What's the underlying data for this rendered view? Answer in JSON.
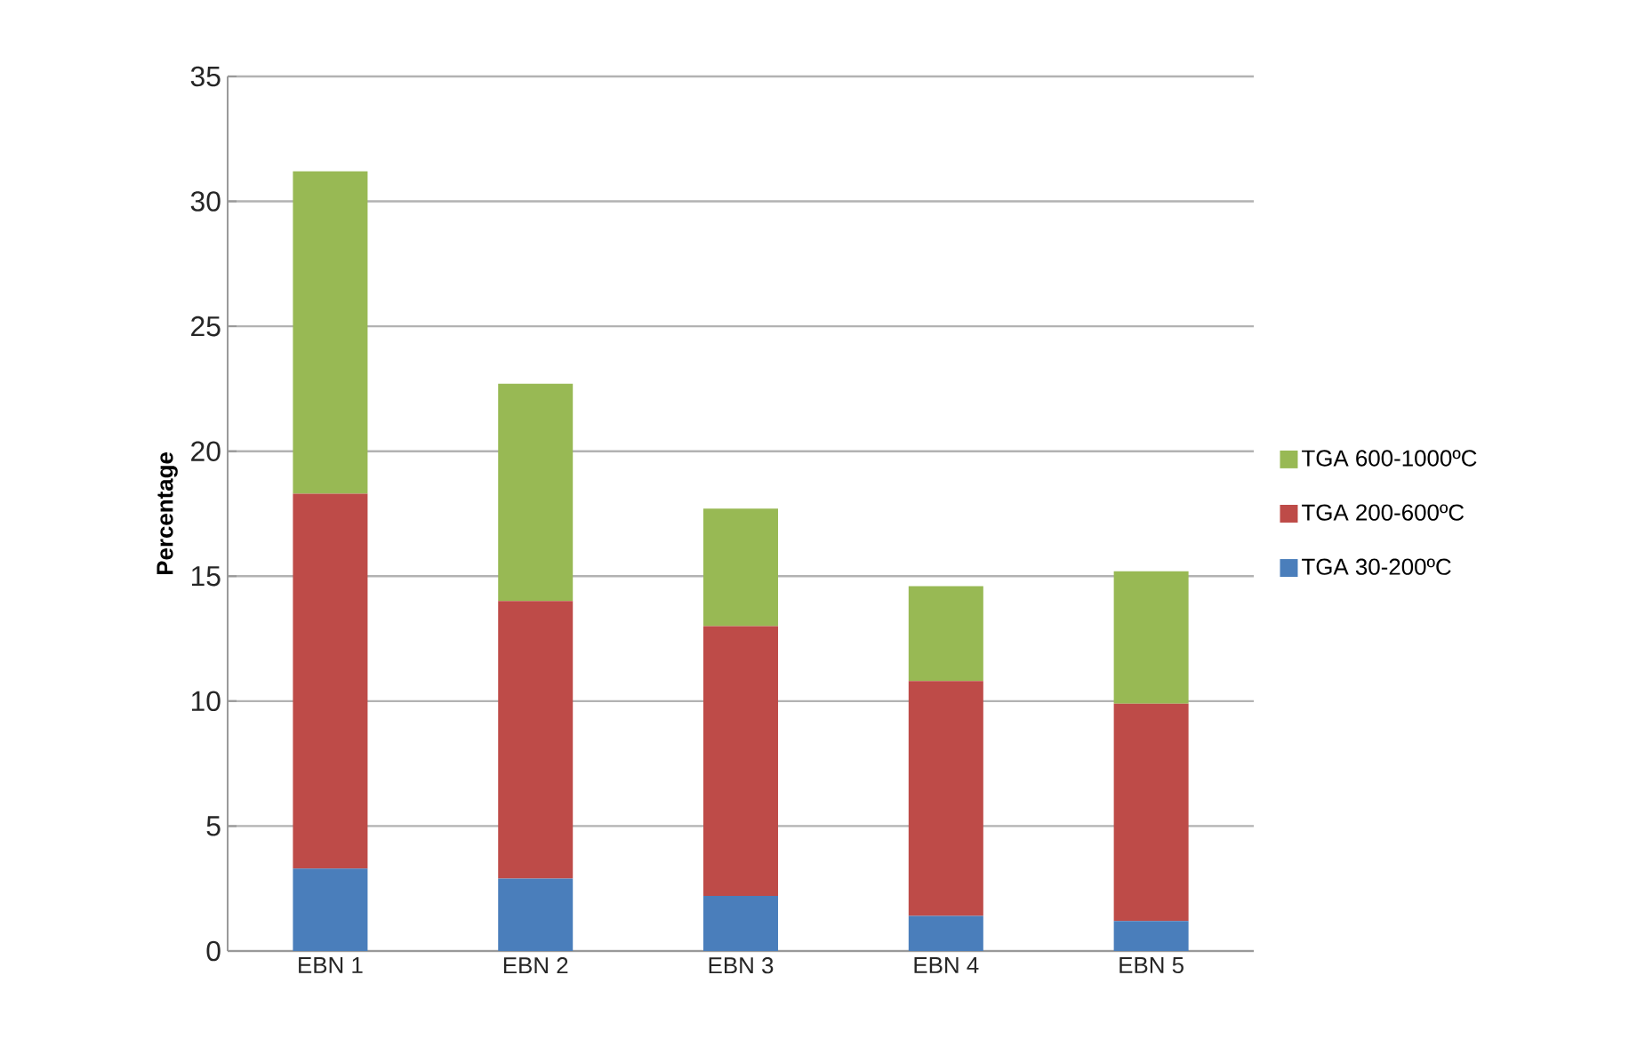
{
  "chart_data": {
    "type": "bar",
    "stacked": true,
    "ylabel": "Percentage",
    "categories": [
      "EBN 1",
      "EBN 2",
      "EBN 3",
      "EBN 4",
      "EBN 5"
    ],
    "series": [
      {
        "name": "TGA 30-200ºC",
        "color": "#4a7ebb",
        "values": [
          3.3,
          2.9,
          2.2,
          1.4,
          1.2
        ]
      },
      {
        "name": "TGA 200-600ºC",
        "color": "#be4b48",
        "values": [
          15.0,
          11.1,
          10.8,
          9.4,
          8.7
        ]
      },
      {
        "name": "TGA 600-1000ºC",
        "color": "#98b954",
        "values": [
          12.9,
          8.7,
          4.7,
          3.8,
          5.3
        ]
      }
    ],
    "ylim": [
      0,
      35
    ],
    "yticks": [
      0,
      5,
      10,
      15,
      20,
      25,
      30,
      35
    ],
    "grid": "y",
    "legend": "right"
  }
}
